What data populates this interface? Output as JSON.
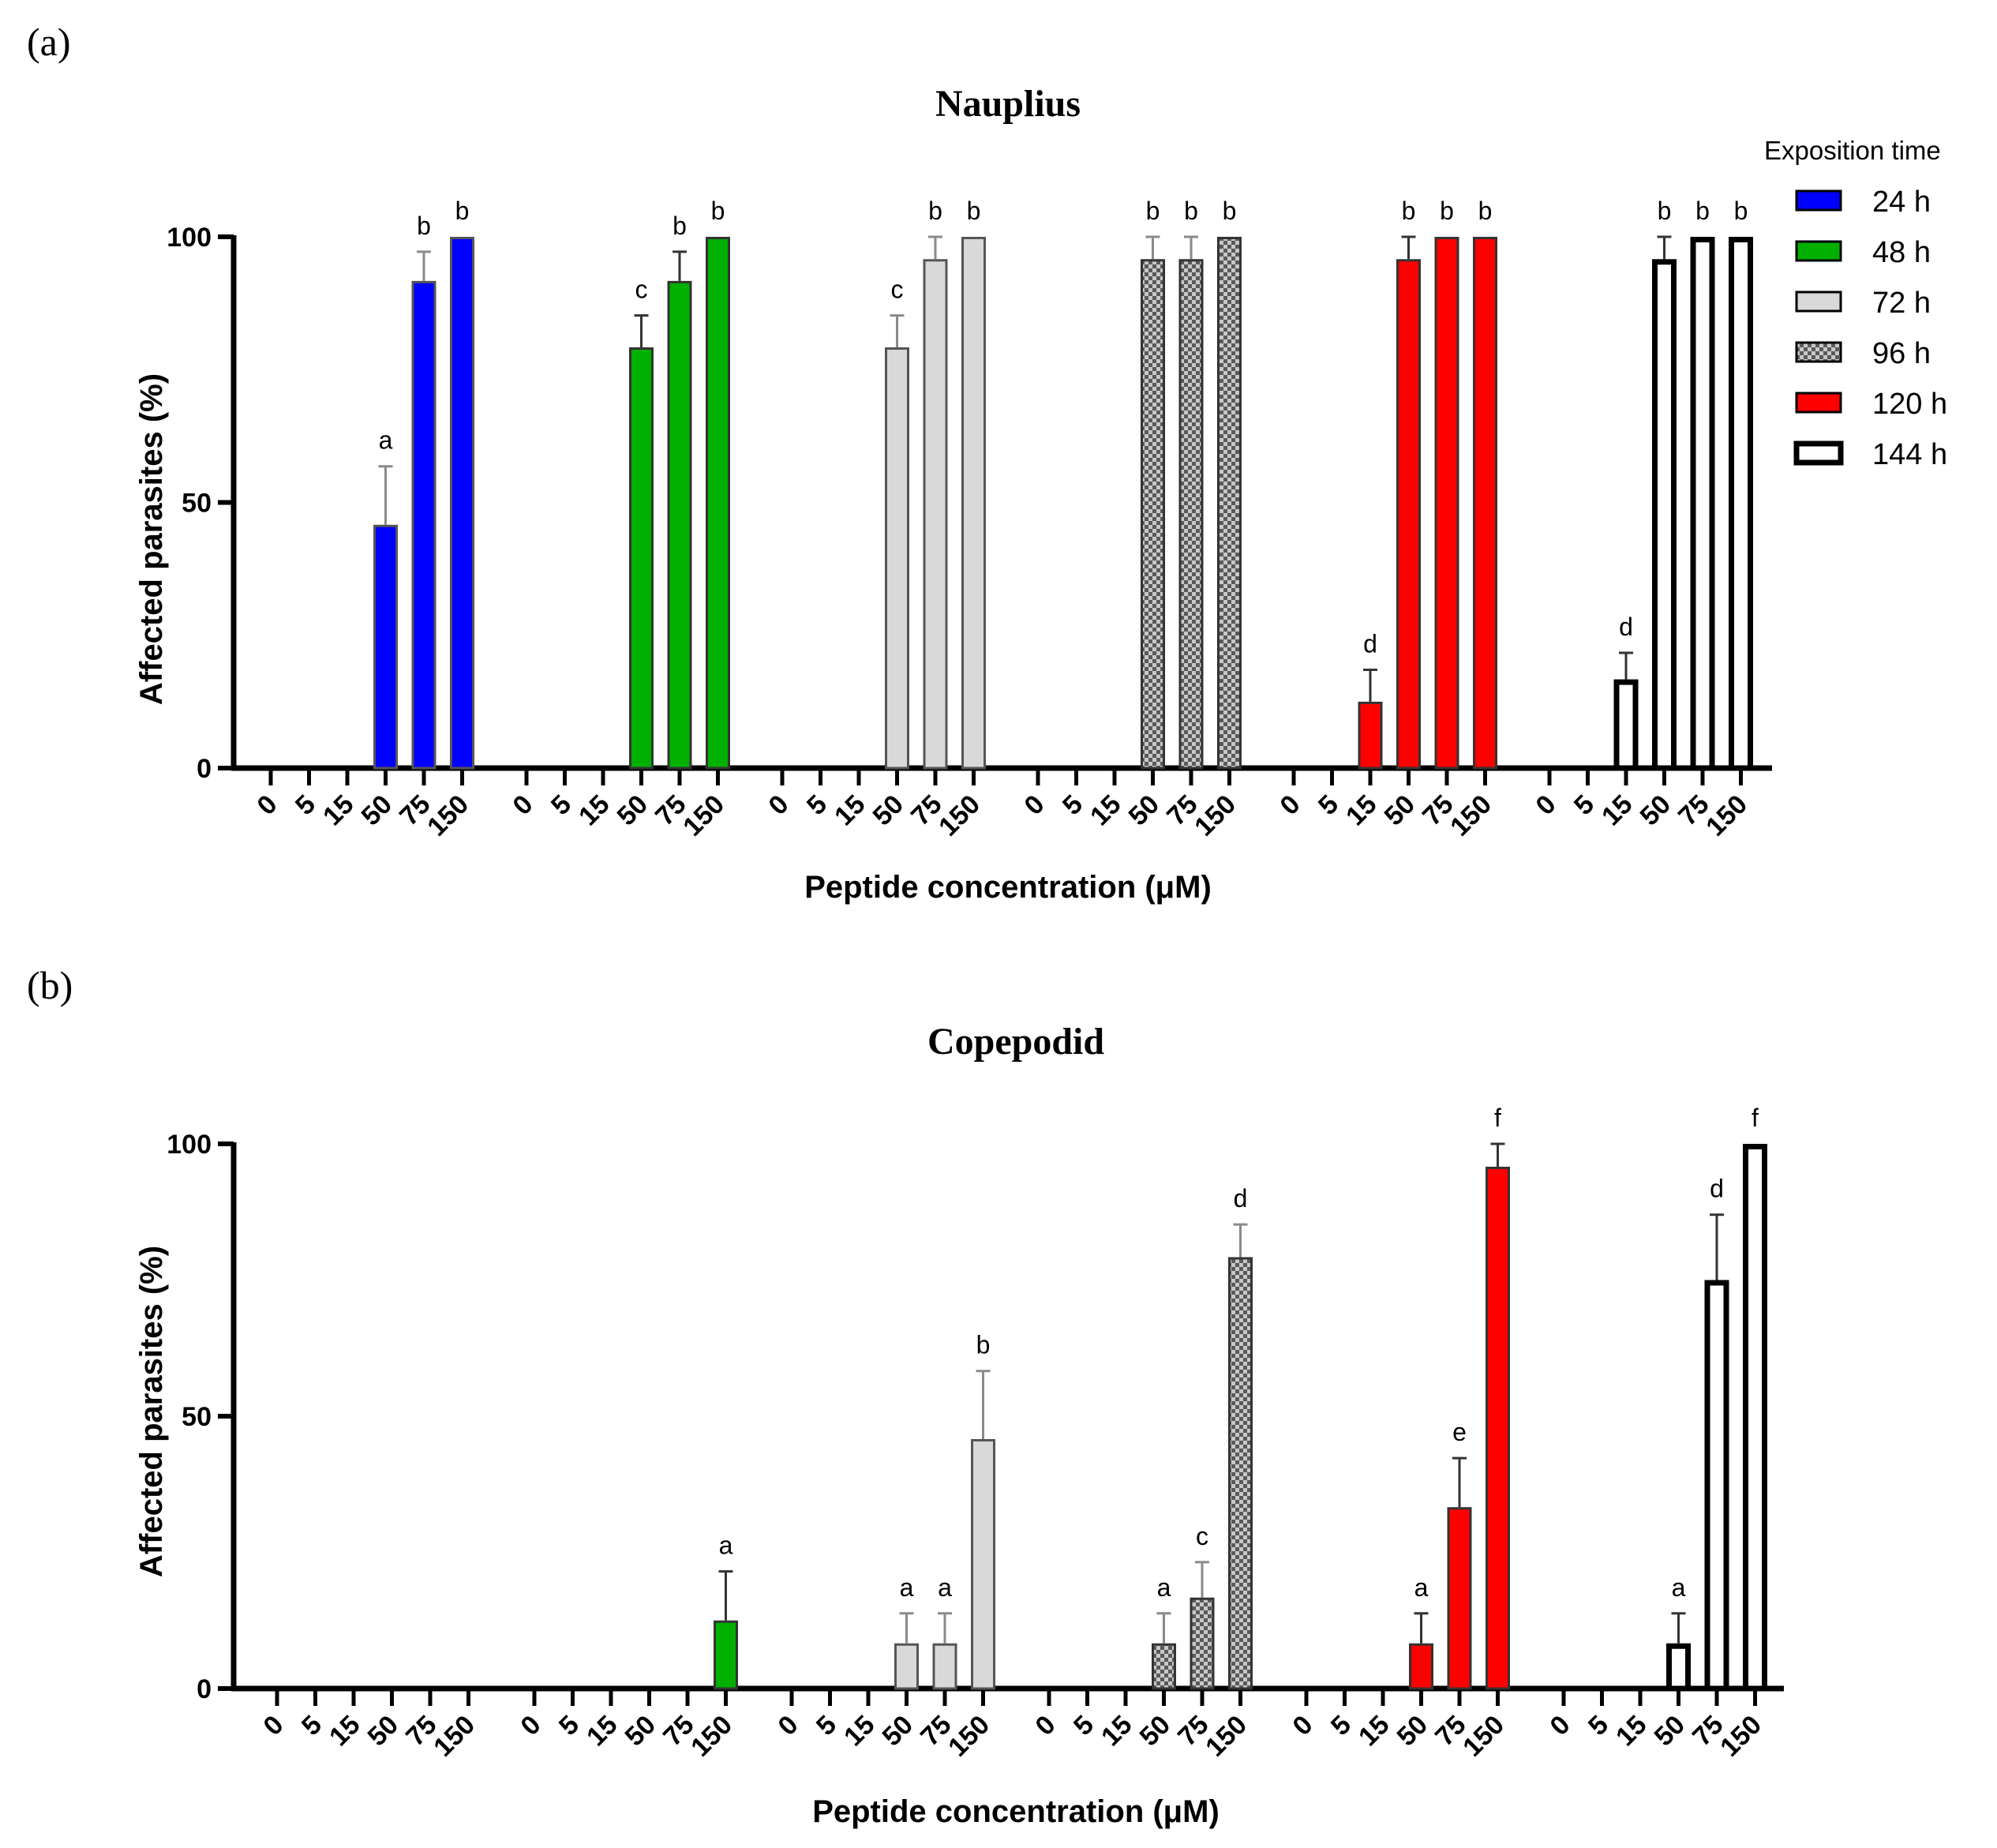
{
  "legend": {
    "title": "Exposition time",
    "items": [
      {
        "label": "24 h",
        "fill": "#0000ff",
        "pattern": "solid",
        "stroke": "#555555"
      },
      {
        "label": "48 h",
        "fill": "#00b000",
        "pattern": "solid",
        "stroke": "#333333"
      },
      {
        "label": "72 h",
        "fill": "#d9d9d9",
        "pattern": "solid",
        "stroke": "#555555"
      },
      {
        "label": "96 h",
        "fill": "#5a5a5a",
        "pattern": "checker",
        "stroke": "#333333"
      },
      {
        "label": "120 h",
        "fill": "#ff0000",
        "pattern": "solid",
        "stroke": "#333333"
      },
      {
        "label": "144 h",
        "fill": "#ffffff",
        "pattern": "hollow",
        "stroke": "#000000"
      }
    ]
  },
  "chart_data": [
    {
      "panel_label": "(a)",
      "type": "bar",
      "title": "Nauplius",
      "xlabel": "Peptide concentration (μM)",
      "ylabel": "Affected parasites (%)",
      "ylim": [
        0,
        100
      ],
      "yticks": [
        0,
        50,
        100
      ],
      "categories": [
        "0",
        "5",
        "15",
        "50",
        "75",
        "150"
      ],
      "series": [
        {
          "name": "24 h",
          "values": [
            0,
            0,
            0,
            45.8,
            91.7,
            100
          ],
          "errors": [
            0,
            0,
            0,
            11,
            5.5,
            0
          ],
          "letters": [
            "",
            "",
            "",
            "a",
            "b",
            "b"
          ]
        },
        {
          "name": "48 h",
          "values": [
            0,
            0,
            0,
            79.2,
            91.7,
            100
          ],
          "errors": [
            0,
            0,
            0,
            6,
            5.5,
            0
          ],
          "letters": [
            "",
            "",
            "",
            "c",
            "b",
            "b"
          ]
        },
        {
          "name": "72 h",
          "values": [
            0,
            0,
            0,
            79.2,
            95.8,
            100
          ],
          "errors": [
            0,
            0,
            0,
            6,
            4.2,
            0
          ],
          "letters": [
            "",
            "",
            "",
            "c",
            "b",
            "b"
          ]
        },
        {
          "name": "96 h",
          "values": [
            0,
            0,
            0,
            95.8,
            95.8,
            100
          ],
          "errors": [
            0,
            0,
            0,
            4.2,
            4.2,
            0
          ],
          "letters": [
            "",
            "",
            "",
            "b",
            "b",
            "b"
          ]
        },
        {
          "name": "120 h",
          "values": [
            0,
            0,
            12.5,
            95.8,
            100,
            100
          ],
          "errors": [
            0,
            0,
            6,
            4.2,
            0,
            0
          ],
          "letters": [
            "",
            "",
            "d",
            "b",
            "b",
            "b"
          ]
        },
        {
          "name": "144 h",
          "values": [
            0,
            0,
            16.7,
            95.8,
            100,
            100
          ],
          "errors": [
            0,
            0,
            5,
            4.2,
            0,
            0
          ],
          "letters": [
            "",
            "",
            "d",
            "b",
            "b",
            "b"
          ]
        }
      ]
    },
    {
      "panel_label": "(b)",
      "type": "bar",
      "title": "Copepodid",
      "xlabel": "Peptide concentration (μM)",
      "ylabel": "Affected parasites (%)",
      "ylim": [
        0,
        100
      ],
      "yticks": [
        0,
        50,
        100
      ],
      "categories": [
        "0",
        "5",
        "15",
        "50",
        "75",
        "150"
      ],
      "series": [
        {
          "name": "24 h",
          "values": [
            0,
            0,
            0,
            0,
            0,
            0
          ],
          "errors": [
            0,
            0,
            0,
            0,
            0,
            0
          ],
          "letters": [
            "",
            "",
            "",
            "",
            "",
            ""
          ]
        },
        {
          "name": "48 h",
          "values": [
            0,
            0,
            0,
            0,
            0,
            12.5
          ],
          "errors": [
            0,
            0,
            0,
            0,
            0,
            9
          ],
          "letters": [
            "",
            "",
            "",
            "",
            "",
            "a"
          ]
        },
        {
          "name": "72 h",
          "values": [
            0,
            0,
            0,
            8.3,
            8.3,
            45.8
          ],
          "errors": [
            0,
            0,
            0,
            5.5,
            5.5,
            12.5
          ],
          "letters": [
            "",
            "",
            "",
            "a",
            "a",
            "b"
          ]
        },
        {
          "name": "96 h",
          "values": [
            0,
            0,
            0,
            8.3,
            16.7,
            79.2
          ],
          "errors": [
            0,
            0,
            0,
            5.5,
            6.5,
            6
          ],
          "letters": [
            "",
            "",
            "",
            "a",
            "c",
            "d"
          ]
        },
        {
          "name": "120 h",
          "values": [
            0,
            0,
            0,
            8.3,
            33.3,
            95.8
          ],
          "errors": [
            0,
            0,
            0,
            5.5,
            9,
            4.2
          ],
          "letters": [
            "",
            "",
            "",
            "a",
            "e",
            "f"
          ]
        },
        {
          "name": "144 h",
          "values": [
            0,
            0,
            0,
            8.3,
            75,
            100
          ],
          "errors": [
            0,
            0,
            0,
            5.5,
            12,
            0
          ],
          "letters": [
            "",
            "",
            "",
            "a",
            "d",
            "f"
          ]
        }
      ]
    }
  ]
}
